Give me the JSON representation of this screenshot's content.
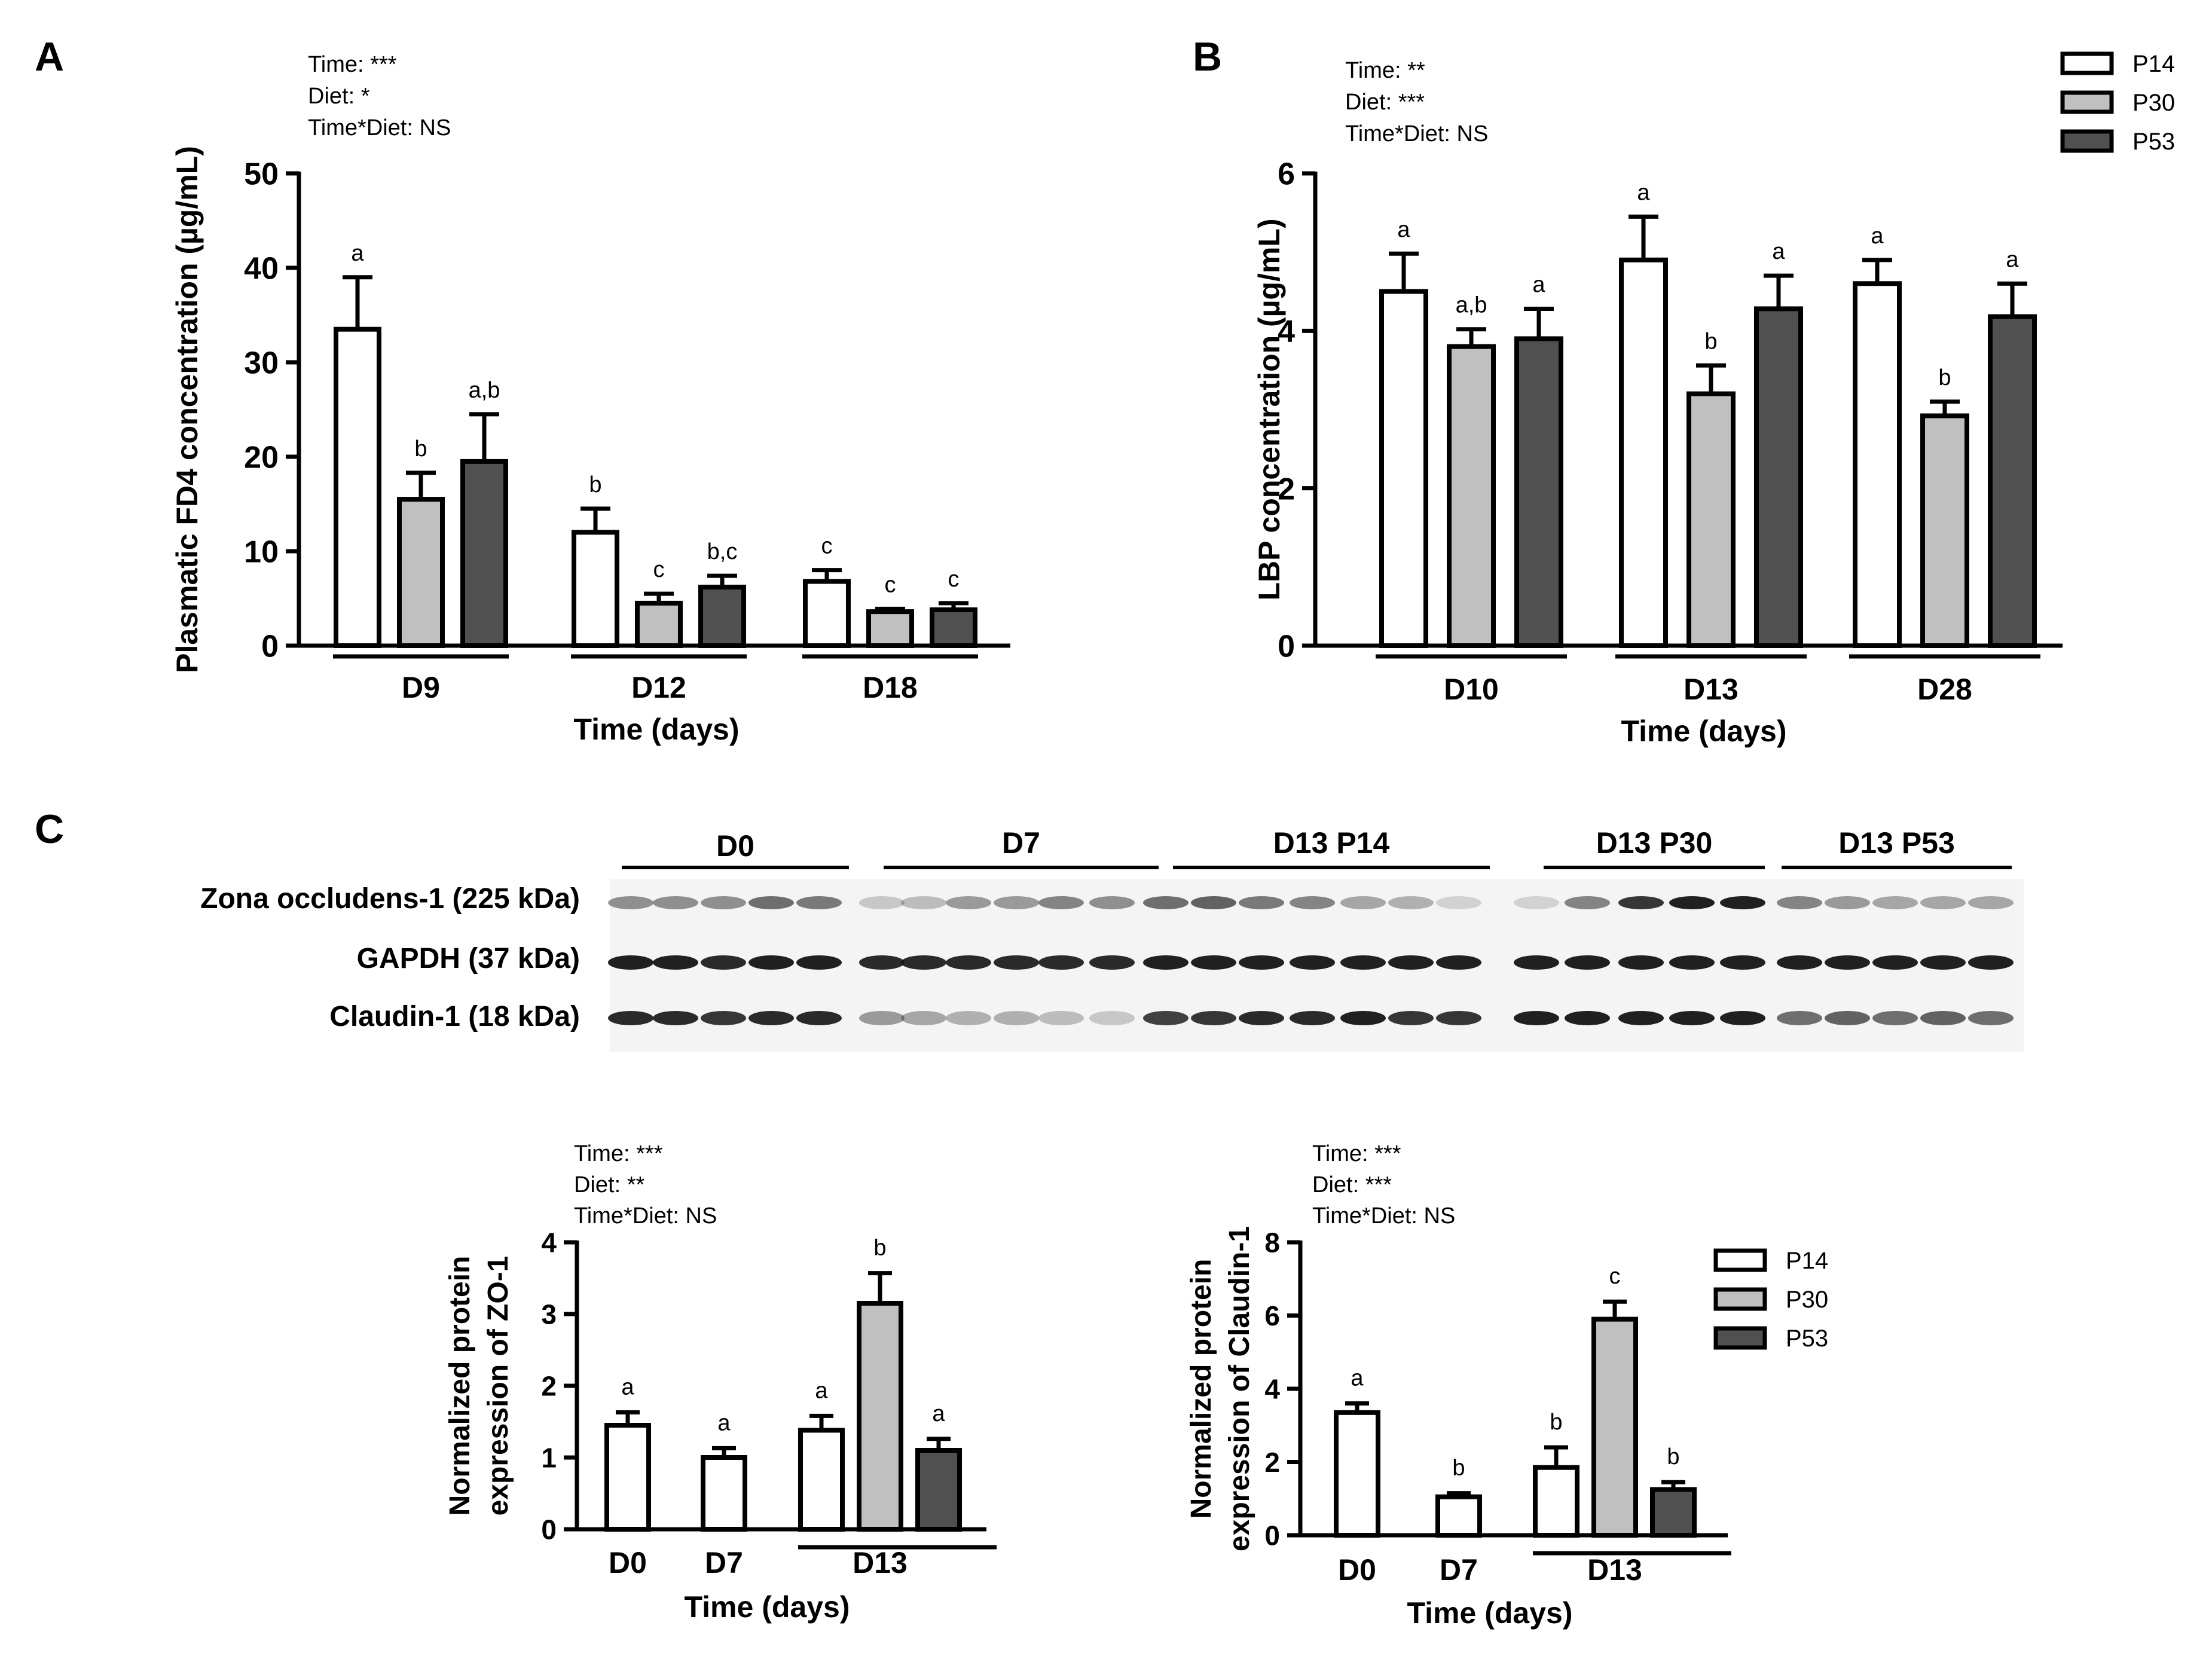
{
  "panel_labels": {
    "a": "A",
    "b": "B",
    "c": "C"
  },
  "colors": {
    "P14": "#ffffff",
    "P30": "#c0c0c0",
    "P53": "#505050",
    "stroke": "#000000"
  },
  "legend": {
    "entries": [
      "P14",
      "P30",
      "P53"
    ]
  },
  "chart_data": [
    {
      "id": "A",
      "type": "bar",
      "title": "",
      "stats": [
        "Time: ***",
        "Diet: *",
        "Time*Diet: NS"
      ],
      "ylabel": "Plasmatic FD4 concentration (µg/mL)",
      "xlabel": "Time (days)",
      "ylim": [
        0,
        50
      ],
      "yticks": [
        0,
        10,
        20,
        30,
        40,
        50
      ],
      "groups": [
        {
          "label": "D9",
          "bars": [
            {
              "series": "P14",
              "value": 33.5,
              "err": 5.5,
              "letter": "a"
            },
            {
              "series": "P30",
              "value": 15.5,
              "err": 2.8,
              "letter": "b"
            },
            {
              "series": "P53",
              "value": 19.5,
              "err": 5.0,
              "letter": "a,b"
            }
          ]
        },
        {
          "label": "D12",
          "bars": [
            {
              "series": "P14",
              "value": 12.0,
              "err": 2.5,
              "letter": "b"
            },
            {
              "series": "P30",
              "value": 4.5,
              "err": 1.0,
              "letter": "c"
            },
            {
              "series": "P53",
              "value": 6.2,
              "err": 1.2,
              "letter": "b,c"
            }
          ]
        },
        {
          "label": "D18",
          "bars": [
            {
              "series": "P14",
              "value": 6.8,
              "err": 1.2,
              "letter": "c"
            },
            {
              "series": "P30",
              "value": 3.6,
              "err": 0.3,
              "letter": "c"
            },
            {
              "series": "P53",
              "value": 3.8,
              "err": 0.7,
              "letter": "c"
            }
          ]
        }
      ]
    },
    {
      "id": "B",
      "type": "bar",
      "title": "",
      "stats": [
        "Time: **",
        "Diet: ***",
        "Time*Diet: NS"
      ],
      "ylabel": "LBP concentration (µg/mL)",
      "xlabel": "Time (days)",
      "ylim": [
        0,
        6
      ],
      "yticks": [
        0,
        2,
        4,
        6
      ],
      "groups": [
        {
          "label": "D10",
          "bars": [
            {
              "series": "P14",
              "value": 4.5,
              "err": 0.48,
              "letter": "a"
            },
            {
              "series": "P30",
              "value": 3.8,
              "err": 0.22,
              "letter": "a,b"
            },
            {
              "series": "P53",
              "value": 3.9,
              "err": 0.38,
              "letter": "a"
            }
          ]
        },
        {
          "label": "D13",
          "bars": [
            {
              "series": "P14",
              "value": 4.9,
              "err": 0.55,
              "letter": "a"
            },
            {
              "series": "P30",
              "value": 3.2,
              "err": 0.36,
              "letter": "b"
            },
            {
              "series": "P53",
              "value": 4.28,
              "err": 0.42,
              "letter": "a"
            }
          ]
        },
        {
          "label": "D28",
          "bars": [
            {
              "series": "P14",
              "value": 4.6,
              "err": 0.3,
              "letter": "a"
            },
            {
              "series": "P30",
              "value": 2.92,
              "err": 0.18,
              "letter": "b"
            },
            {
              "series": "P53",
              "value": 4.18,
              "err": 0.42,
              "letter": "a"
            }
          ]
        }
      ]
    },
    {
      "id": "C-ZO1",
      "type": "bar",
      "title": "",
      "stats": [
        "Time: ***",
        "Diet: **",
        "Time*Diet: NS"
      ],
      "ylabel": [
        "Normalized protein",
        "expression of ZO-1"
      ],
      "xlabel": "Time (days)",
      "ylim": [
        0,
        4
      ],
      "yticks": [
        0,
        1,
        2,
        3,
        4
      ],
      "groups": [
        {
          "label": "D0",
          "underline": false,
          "bars": [
            {
              "series": "P14",
              "value": 1.45,
              "err": 0.18,
              "letter": "a"
            }
          ]
        },
        {
          "label": "D7",
          "underline": false,
          "bars": [
            {
              "series": "P14",
              "value": 1.0,
              "err": 0.13,
              "letter": "a"
            }
          ]
        },
        {
          "label": "D13",
          "underline": true,
          "bars": [
            {
              "series": "P14",
              "value": 1.38,
              "err": 0.2,
              "letter": "a"
            },
            {
              "series": "P30",
              "value": 3.15,
              "err": 0.42,
              "letter": "b"
            },
            {
              "series": "P53",
              "value": 1.1,
              "err": 0.16,
              "letter": "a"
            }
          ]
        }
      ]
    },
    {
      "id": "C-CLDN1",
      "type": "bar",
      "title": "",
      "stats": [
        "Time: ***",
        "Diet: ***",
        "Time*Diet: NS"
      ],
      "ylabel": [
        "Normalized protein",
        "expression of Claudin-1"
      ],
      "xlabel": "Time (days)",
      "ylim": [
        0,
        8
      ],
      "yticks": [
        0,
        2,
        4,
        6,
        8
      ],
      "groups": [
        {
          "label": "D0",
          "underline": false,
          "bars": [
            {
              "series": "P14",
              "value": 3.35,
              "err": 0.25,
              "letter": "a"
            }
          ]
        },
        {
          "label": "D7",
          "underline": false,
          "bars": [
            {
              "series": "P14",
              "value": 1.05,
              "err": 0.1,
              "letter": "b"
            }
          ]
        },
        {
          "label": "D13",
          "underline": true,
          "bars": [
            {
              "series": "P14",
              "value": 1.85,
              "err": 0.55,
              "letter": "b"
            },
            {
              "series": "P30",
              "value": 5.9,
              "err": 0.48,
              "letter": "c"
            },
            {
              "series": "P53",
              "value": 1.25,
              "err": 0.2,
              "letter": "b"
            }
          ]
        }
      ]
    }
  ],
  "western_blot": {
    "groups": [
      "D0",
      "D7",
      "D13 P14",
      "D13 P30",
      "D13 P53"
    ],
    "rows": [
      {
        "label": "Zona occludens-1 (225 kDa)"
      },
      {
        "label": "GAPDH (37 kDa)"
      },
      {
        "label": "Claudin-1 (18 kDa)"
      }
    ]
  }
}
